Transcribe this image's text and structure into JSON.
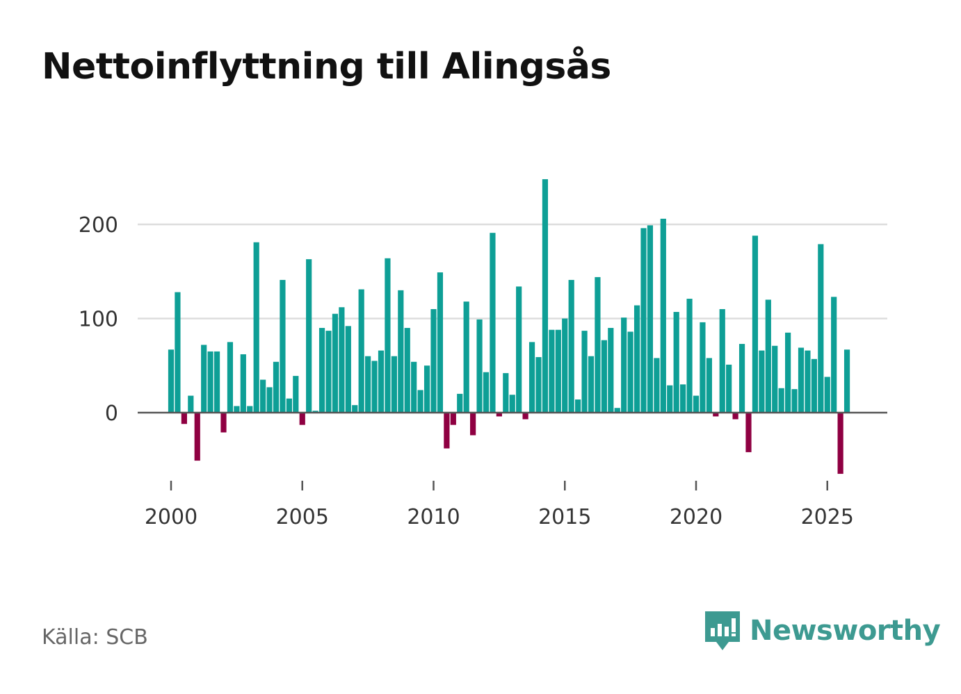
{
  "title": "Nettoinflyttning till Alingsås",
  "source": "Källa: SCB",
  "brand": {
    "name": "Newsworthy",
    "icon": "newsworthy-logo-icon"
  },
  "colors": {
    "positive": "#0e9f96",
    "negative": "#8f0042",
    "grid": "#dddddd",
    "baseline": "#555555",
    "brand": "#3d9a91"
  },
  "chart_data": {
    "type": "bar",
    "title": "Nettoinflyttning till Alingsås",
    "xlabel": "",
    "ylabel": "",
    "frequency": "quarterly",
    "x_start": 2000.0,
    "x_step": 0.25,
    "xlim": [
      1999.5,
      2027.4
    ],
    "ylim": [
      -80,
      270
    ],
    "x_ticks": [
      2000,
      2005,
      2010,
      2015,
      2020,
      2025
    ],
    "y_ticks": [
      0,
      100,
      200
    ],
    "grid": true,
    "values": [
      67,
      128,
      -12,
      18,
      -51,
      72,
      65,
      65,
      -21,
      75,
      7,
      62,
      7,
      181,
      35,
      27,
      54,
      141,
      15,
      39,
      -13,
      163,
      2,
      90,
      87,
      105,
      112,
      92,
      8,
      131,
      60,
      55,
      66,
      164,
      60,
      130,
      90,
      54,
      24,
      50,
      110,
      149,
      -38,
      -13,
      20,
      118,
      -24,
      99,
      43,
      191,
      -4,
      42,
      19,
      134,
      -7,
      75,
      59,
      248,
      88,
      88,
      100,
      141,
      14,
      87,
      60,
      144,
      77,
      90,
      5,
      101,
      86,
      114,
      196,
      199,
      58,
      206,
      29,
      107,
      30,
      121,
      18,
      96,
      58,
      -4,
      110,
      51,
      -7,
      73,
      -42,
      188,
      66,
      120,
      71,
      26,
      85,
      25,
      69,
      66,
      57,
      179,
      38,
      123,
      -65,
      67
    ]
  }
}
